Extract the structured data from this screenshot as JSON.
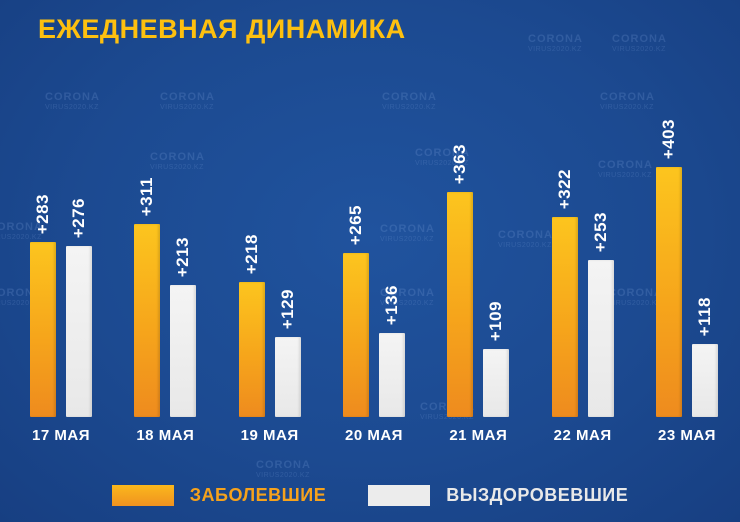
{
  "title": "ЕЖЕДНЕВНАЯ ДИНАМИКА",
  "watermark": {
    "line1": "CORONA",
    "line2": "VIRUS2020.KZ"
  },
  "colors": {
    "background": "#1c4a91",
    "title": "#fdc00f",
    "infected_bar_top": "#fcc51e",
    "infected_bar_bottom": "#ee8b1e",
    "recovered_bar": "#ececec",
    "value_label": "#ffffff",
    "date_label": "#ffffff",
    "legend_infected_text": "#f6a21c",
    "legend_recovered_text": "#e9e9e9"
  },
  "legend": [
    {
      "label": "ЗАБОЛЕВШИЕ",
      "color": "#f6a21c"
    },
    {
      "label": "ВЫЗДОРОВЕВШИЕ",
      "color": "#ececec"
    }
  ],
  "chart_data": {
    "type": "bar",
    "title": "ЕЖЕДНЕВНАЯ ДИНАМИКА",
    "categories": [
      "17 МАЯ",
      "18 МАЯ",
      "19 МАЯ",
      "20 МАЯ",
      "21 МАЯ",
      "22 МАЯ",
      "23 МАЯ"
    ],
    "value_prefix": "+",
    "series": [
      {
        "name": "ЗАБОЛЕВШИЕ",
        "color": "#f6a21c",
        "values": [
          283,
          311,
          218,
          265,
          363,
          322,
          403
        ],
        "labels": [
          "+283",
          "+311",
          "+218",
          "+265",
          "+363",
          "+322",
          "+403"
        ]
      },
      {
        "name": "ВЫЗДОРОВЕВШИЕ",
        "color": "#ececec",
        "values": [
          276,
          213,
          129,
          136,
          109,
          253,
          118
        ],
        "labels": [
          "+276",
          "+213",
          "+129",
          "+136",
          "+109",
          "+253",
          "+118"
        ]
      }
    ],
    "ylim": [
      0,
      420
    ],
    "grid": false,
    "legend_position": "bottom",
    "value_labels_rotated": true
  }
}
